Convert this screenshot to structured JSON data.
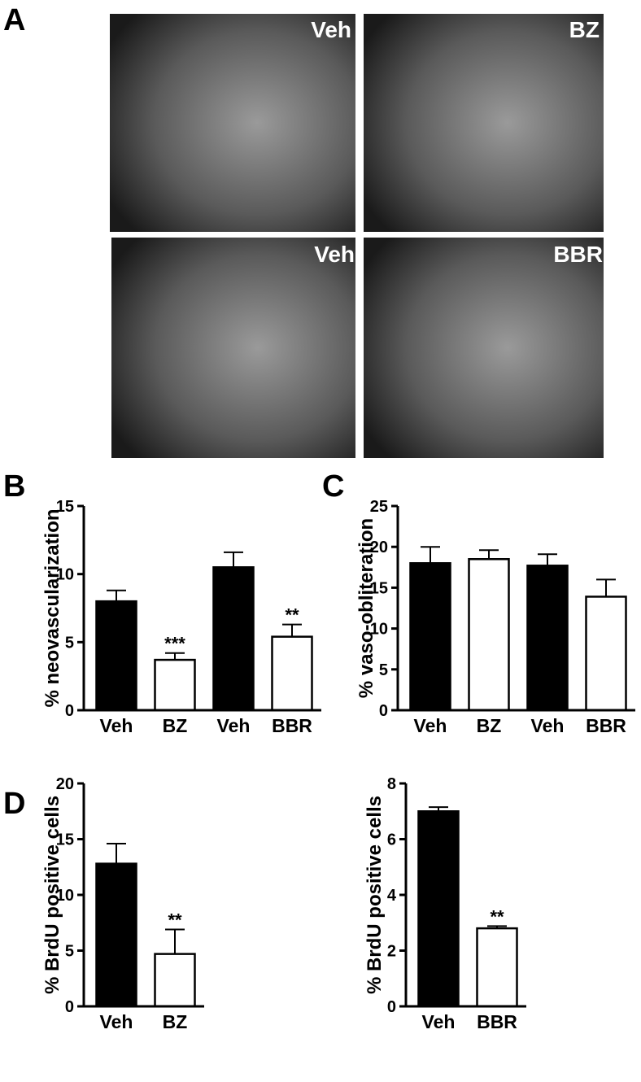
{
  "panel_labels": [
    "A",
    "B",
    "C",
    "D"
  ],
  "images": [
    "Veh",
    "BZ",
    "Veh",
    "BBR"
  ],
  "chart_data": [
    {
      "type": "bar",
      "y_label": "% neovascularization",
      "categories": [
        "Veh",
        "BZ",
        "Veh",
        "BBR"
      ],
      "values": [
        8.0,
        3.7,
        10.5,
        5.4
      ],
      "errors": [
        0.8,
        0.5,
        1.1,
        0.9
      ],
      "colors": [
        "#000000",
        "#ffffff",
        "#000000",
        "#ffffff"
      ],
      "significance": [
        null,
        "***",
        null,
        "**"
      ],
      "ylim": [
        0,
        15
      ],
      "yticks": [
        0,
        5,
        10,
        15
      ]
    },
    {
      "type": "bar",
      "y_label": "% vaso-obliteration",
      "categories": [
        "Veh",
        "BZ",
        "Veh",
        "BBR"
      ],
      "values": [
        18.0,
        18.5,
        17.7,
        13.9
      ],
      "errors": [
        2.0,
        1.1,
        1.4,
        2.1
      ],
      "colors": [
        "#000000",
        "#ffffff",
        "#000000",
        "#ffffff"
      ],
      "ylim": [
        0,
        25
      ],
      "yticks": [
        0,
        5,
        10,
        15,
        20,
        25
      ]
    },
    {
      "type": "bar",
      "y_label": "% BrdU positive cells",
      "categories": [
        "Veh",
        "BZ"
      ],
      "values": [
        12.8,
        4.7
      ],
      "errors": [
        1.8,
        2.2
      ],
      "colors": [
        "#000000",
        "#ffffff"
      ],
      "significance": [
        null,
        "**"
      ],
      "ylim": [
        0,
        20
      ],
      "yticks": [
        0,
        5,
        10,
        15,
        20
      ]
    },
    {
      "type": "bar",
      "y_label": "% BrdU positive cells",
      "categories": [
        "Veh",
        "BBR"
      ],
      "values": [
        7.0,
        2.8
      ],
      "errors": [
        0.15,
        0.08
      ],
      "colors": [
        "#000000",
        "#ffffff"
      ],
      "significance": [
        null,
        "**"
      ],
      "ylim": [
        0,
        8
      ],
      "yticks": [
        0,
        2,
        4,
        6,
        8
      ]
    }
  ]
}
